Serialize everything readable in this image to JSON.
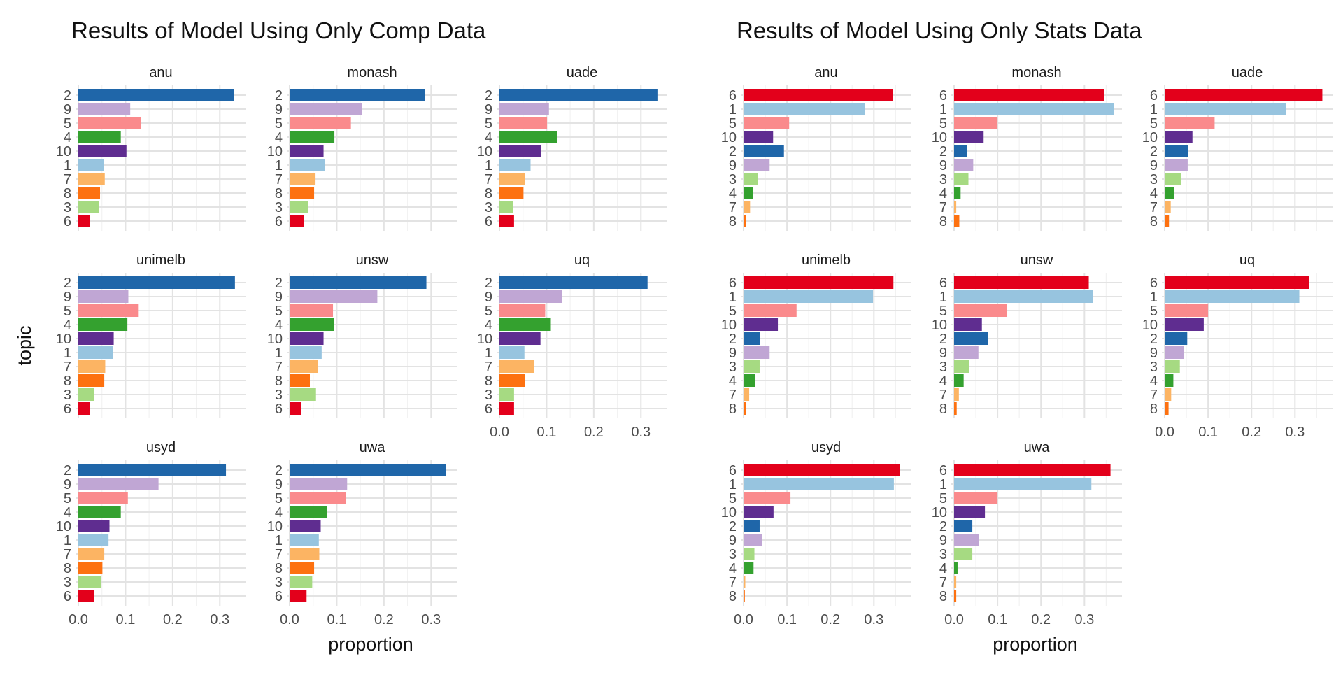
{
  "topic_colors": {
    "1": "#97c4df",
    "2": "#1f66a9",
    "3": "#a6da82",
    "4": "#34a12f",
    "5": "#fa8a8c",
    "6": "#e3001b",
    "7": "#fcb463",
    "8": "#fd7110",
    "9": "#c0a6d4",
    "10": "#5f2d90"
  },
  "chart_data": [
    {
      "type": "bar",
      "orientation": "horizontal",
      "title": "Results of Model Using Only Comp Data",
      "xlabel": "proportion",
      "ylabel": "topic",
      "xlim": [
        0,
        0.35
      ],
      "x_ticks": [
        "0.0",
        "0.1",
        "0.2",
        "0.3"
      ],
      "x_tick_values": [
        0,
        0.1,
        0.2,
        0.3
      ],
      "grid": true,
      "topic_order": [
        "2",
        "9",
        "5",
        "4",
        "10",
        "1",
        "7",
        "8",
        "3",
        "6"
      ],
      "facets": [
        {
          "name": "anu",
          "values": {
            "2": 0.33,
            "9": 0.11,
            "5": 0.133,
            "4": 0.09,
            "10": 0.102,
            "1": 0.054,
            "7": 0.056,
            "8": 0.046,
            "3": 0.044,
            "6": 0.024
          }
        },
        {
          "name": "monash",
          "values": {
            "2": 0.287,
            "9": 0.153,
            "5": 0.13,
            "4": 0.095,
            "10": 0.072,
            "1": 0.075,
            "7": 0.055,
            "8": 0.052,
            "3": 0.04,
            "6": 0.031
          }
        },
        {
          "name": "uade",
          "values": {
            "2": 0.335,
            "9": 0.105,
            "5": 0.101,
            "4": 0.122,
            "10": 0.088,
            "1": 0.066,
            "7": 0.054,
            "8": 0.051,
            "3": 0.029,
            "6": 0.031
          }
        },
        {
          "name": "unimelb",
          "values": {
            "2": 0.332,
            "9": 0.106,
            "5": 0.128,
            "4": 0.104,
            "10": 0.075,
            "1": 0.073,
            "7": 0.057,
            "8": 0.055,
            "3": 0.034,
            "6": 0.025
          }
        },
        {
          "name": "unsw",
          "values": {
            "2": 0.29,
            "9": 0.186,
            "5": 0.092,
            "4": 0.094,
            "10": 0.072,
            "1": 0.068,
            "7": 0.06,
            "8": 0.043,
            "3": 0.056,
            "6": 0.024
          }
        },
        {
          "name": "uq",
          "values": {
            "2": 0.314,
            "9": 0.132,
            "5": 0.097,
            "4": 0.109,
            "10": 0.087,
            "1": 0.053,
            "7": 0.074,
            "8": 0.054,
            "3": 0.031,
            "6": 0.031
          }
        },
        {
          "name": "usyd",
          "values": {
            "2": 0.313,
            "9": 0.17,
            "5": 0.105,
            "4": 0.09,
            "10": 0.066,
            "1": 0.064,
            "7": 0.055,
            "8": 0.051,
            "3": 0.049,
            "6": 0.033
          }
        },
        {
          "name": "uwa",
          "values": {
            "2": 0.331,
            "9": 0.122,
            "5": 0.12,
            "4": 0.08,
            "10": 0.066,
            "1": 0.062,
            "7": 0.063,
            "8": 0.052,
            "3": 0.048,
            "6": 0.036
          }
        }
      ]
    },
    {
      "type": "bar",
      "orientation": "horizontal",
      "title": "Results of Model Using Only Stats Data",
      "xlabel": "proportion",
      "ylabel": "",
      "xlim": [
        0,
        0.38
      ],
      "x_ticks": [
        "0.0",
        "0.1",
        "0.2",
        "0.3"
      ],
      "x_tick_values": [
        0,
        0.1,
        0.2,
        0.3
      ],
      "grid": true,
      "topic_order": [
        "6",
        "1",
        "5",
        "10",
        "2",
        "9",
        "3",
        "4",
        "7",
        "8"
      ],
      "facets": [
        {
          "name": "anu",
          "values": {
            "6": 0.343,
            "1": 0.28,
            "5": 0.105,
            "10": 0.068,
            "2": 0.093,
            "9": 0.06,
            "3": 0.033,
            "4": 0.021,
            "7": 0.015,
            "8": 0.006
          }
        },
        {
          "name": "monash",
          "values": {
            "6": 0.345,
            "1": 0.368,
            "5": 0.1,
            "10": 0.068,
            "2": 0.03,
            "9": 0.044,
            "3": 0.033,
            "4": 0.015,
            "7": 0.005,
            "8": 0.012
          }
        },
        {
          "name": "uade",
          "values": {
            "6": 0.363,
            "1": 0.28,
            "5": 0.115,
            "10": 0.064,
            "2": 0.054,
            "9": 0.053,
            "3": 0.037,
            "4": 0.022,
            "7": 0.014,
            "8": 0.01
          }
        },
        {
          "name": "unimelb",
          "values": {
            "6": 0.345,
            "1": 0.298,
            "5": 0.122,
            "10": 0.079,
            "2": 0.038,
            "9": 0.06,
            "3": 0.037,
            "4": 0.026,
            "7": 0.013,
            "8": 0.006
          }
        },
        {
          "name": "unsw",
          "values": {
            "6": 0.31,
            "1": 0.319,
            "5": 0.122,
            "10": 0.064,
            "2": 0.078,
            "9": 0.056,
            "3": 0.035,
            "4": 0.022,
            "7": 0.011,
            "8": 0.006
          }
        },
        {
          "name": "uq",
          "values": {
            "6": 0.333,
            "1": 0.31,
            "5": 0.1,
            "10": 0.09,
            "2": 0.052,
            "9": 0.045,
            "3": 0.035,
            "4": 0.02,
            "7": 0.015,
            "8": 0.009
          }
        },
        {
          "name": "usyd",
          "values": {
            "6": 0.36,
            "1": 0.346,
            "5": 0.108,
            "10": 0.069,
            "2": 0.037,
            "9": 0.043,
            "3": 0.025,
            "4": 0.023,
            "7": 0.004,
            "8": 0.003
          }
        },
        {
          "name": "uwa",
          "values": {
            "6": 0.36,
            "1": 0.316,
            "5": 0.1,
            "10": 0.071,
            "2": 0.042,
            "9": 0.057,
            "3": 0.042,
            "4": 0.008,
            "7": 0.005,
            "8": 0.005
          }
        }
      ]
    }
  ]
}
